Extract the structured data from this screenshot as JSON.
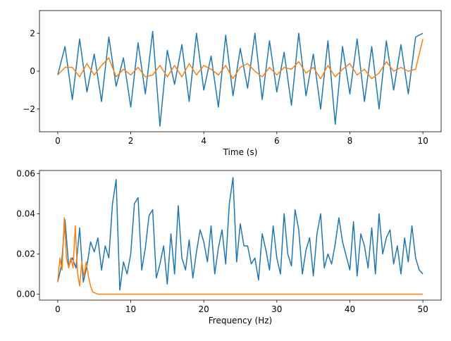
{
  "chart_data": [
    {
      "type": "line",
      "xlabel": "Time (s)",
      "ylabel": "",
      "xlim": [
        -0.5,
        10.5
      ],
      "ylim": [
        -3.2,
        3.2
      ],
      "xticks": [
        0,
        2,
        4,
        6,
        8,
        10
      ],
      "yticks": [
        -2,
        0,
        2
      ],
      "grid": false,
      "series": [
        {
          "color": "#1f77b4",
          "x": [
            0.0,
            0.2,
            0.4,
            0.6,
            0.8,
            1.0,
            1.2,
            1.4,
            1.6,
            1.8,
            2.0,
            2.2,
            2.4,
            2.6,
            2.8,
            3.0,
            3.2,
            3.4,
            3.6,
            3.8,
            4.0,
            4.2,
            4.4,
            4.6,
            4.8,
            5.0,
            5.2,
            5.4,
            5.6,
            5.8,
            6.0,
            6.2,
            6.4,
            6.6,
            6.8,
            7.0,
            7.2,
            7.4,
            7.6,
            7.8,
            8.0,
            8.2,
            8.4,
            8.6,
            8.8,
            9.0,
            9.2,
            9.4,
            9.6,
            9.8,
            10.0
          ],
          "y": [
            -0.2,
            1.3,
            -1.5,
            1.7,
            -1.1,
            0.9,
            -1.6,
            1.8,
            -0.8,
            0.7,
            -1.9,
            1.5,
            -1.2,
            2.1,
            -2.9,
            1.1,
            -0.7,
            1.4,
            -1.6,
            2.0,
            -1.0,
            0.8,
            -1.9,
            1.9,
            -1.3,
            1.2,
            -0.9,
            2.0,
            -1.5,
            1.6,
            -1.1,
            1.0,
            -1.8,
            2.0,
            -1.3,
            0.9,
            -2.0,
            1.6,
            -2.8,
            1.3,
            -1.2,
            1.7,
            -1.6,
            1.3,
            -2.0,
            1.6,
            -1.0,
            1.4,
            -1.2,
            1.8,
            2.0
          ]
        },
        {
          "color": "#ff7f0e",
          "x": [
            0.0,
            0.2,
            0.4,
            0.6,
            0.8,
            1.0,
            1.2,
            1.4,
            1.6,
            1.8,
            2.0,
            2.2,
            2.4,
            2.6,
            2.8,
            3.0,
            3.2,
            3.4,
            3.6,
            3.8,
            4.0,
            4.2,
            4.4,
            4.6,
            4.8,
            5.0,
            5.2,
            5.4,
            5.6,
            5.8,
            6.0,
            6.2,
            6.4,
            6.6,
            6.8,
            7.0,
            7.2,
            7.4,
            7.6,
            7.8,
            8.0,
            8.2,
            8.4,
            8.6,
            8.8,
            9.0,
            9.2,
            9.4,
            9.6,
            9.8,
            10.0
          ],
          "y": [
            -0.2,
            0.2,
            0.2,
            -0.3,
            0.4,
            -0.2,
            0.3,
            0.7,
            -0.3,
            0.1,
            -0.2,
            0.2,
            -0.3,
            -0.2,
            0.3,
            -0.3,
            0.3,
            -0.3,
            0.4,
            -0.2,
            0.3,
            0.1,
            -0.2,
            0.3,
            -0.4,
            0.2,
            0.4,
            0.0,
            -0.3,
            0.2,
            -0.2,
            0.2,
            0.1,
            0.5,
            -0.1,
            0.2,
            -0.4,
            0.3,
            -0.3,
            0.1,
            0.4,
            -0.2,
            0.1,
            -0.4,
            -0.1,
            0.5,
            0.0,
            0.2,
            0.0,
            0.1,
            1.7
          ]
        }
      ]
    },
    {
      "type": "line",
      "xlabel": "Frequency (Hz)",
      "ylabel": "",
      "xlim": [
        -2.5,
        52.5
      ],
      "ylim": [
        -0.003,
        0.0615
      ],
      "xticks": [
        0,
        10,
        20,
        30,
        40,
        50
      ],
      "yticks": [
        0.0,
        0.02,
        0.04,
        0.06
      ],
      "ytick_labels": [
        "0.00",
        "0.02",
        "0.04",
        "0.06"
      ],
      "grid": false,
      "series": [
        {
          "color": "#1f77b4",
          "x": [
            0,
            0.5,
            1,
            1.5,
            2,
            2.5,
            3,
            3.5,
            4,
            4.5,
            5,
            5.5,
            6,
            6.5,
            7,
            7.5,
            8,
            8.5,
            9,
            9.5,
            10,
            10.5,
            11,
            11.5,
            12,
            12.5,
            13,
            13.5,
            14,
            14.5,
            15,
            15.5,
            16,
            16.5,
            17,
            17.5,
            18,
            18.5,
            19,
            19.5,
            20,
            20.5,
            21,
            21.5,
            22,
            22.5,
            23,
            23.5,
            24,
            24.5,
            25,
            25.5,
            26,
            26.5,
            27,
            27.5,
            28,
            28.5,
            29,
            29.5,
            30,
            30.5,
            31,
            31.5,
            32,
            32.5,
            33,
            33.5,
            34,
            34.5,
            35,
            35.5,
            36,
            36.5,
            37,
            37.5,
            38,
            38.5,
            39,
            39.5,
            40,
            40.5,
            41,
            41.5,
            42,
            42.5,
            43,
            43.5,
            44,
            44.5,
            45,
            45.5,
            46,
            46.5,
            47,
            47.5,
            48,
            48.5,
            49,
            49.5,
            50
          ],
          "y": [
            0.006,
            0.014,
            0.037,
            0.014,
            0.018,
            0.013,
            0.033,
            0.006,
            0.014,
            0.026,
            0.021,
            0.028,
            0.012,
            0.024,
            0.018,
            0.045,
            0.057,
            0.002,
            0.016,
            0.01,
            0.02,
            0.045,
            0.048,
            0.012,
            0.023,
            0.039,
            0.042,
            0.008,
            0.015,
            0.024,
            0.005,
            0.03,
            0.01,
            0.044,
            0.018,
            0.012,
            0.027,
            0.008,
            0.021,
            0.032,
            0.026,
            0.016,
            0.034,
            0.01,
            0.023,
            0.032,
            0.015,
            0.045,
            0.058,
            0.016,
            0.035,
            0.024,
            0.024,
            0.015,
            0.018,
            0.007,
            0.03,
            0.022,
            0.012,
            0.034,
            0.018,
            0.01,
            0.04,
            0.02,
            0.014,
            0.042,
            0.032,
            0.01,
            0.022,
            0.028,
            0.009,
            0.03,
            0.04,
            0.013,
            0.02,
            0.015,
            0.025,
            0.038,
            0.026,
            0.019,
            0.012,
            0.036,
            0.009,
            0.03,
            0.024,
            0.013,
            0.033,
            0.01,
            0.04,
            0.02,
            0.028,
            0.032,
            0.015,
            0.024,
            0.01,
            0.028,
            0.016,
            0.034,
            0.018,
            0.012,
            0.01
          ]
        },
        {
          "color": "#ff7f0e",
          "x": [
            0,
            0.3,
            0.6,
            0.9,
            1.2,
            1.5,
            1.8,
            2.1,
            2.4,
            2.7,
            3.0,
            3.3,
            3.6,
            3.9,
            4.2,
            4.5,
            4.8,
            5.5,
            6,
            10,
            20,
            30,
            40,
            50
          ],
          "y": [
            0.006,
            0.018,
            0.012,
            0.038,
            0.018,
            0.013,
            0.018,
            0.013,
            0.034,
            0.011,
            0.004,
            0.016,
            0.009,
            0.016,
            0.009,
            0.004,
            0.001,
            0.0,
            0.0,
            0.0,
            0.0,
            0.0,
            0.0,
            0.0
          ]
        }
      ]
    }
  ]
}
